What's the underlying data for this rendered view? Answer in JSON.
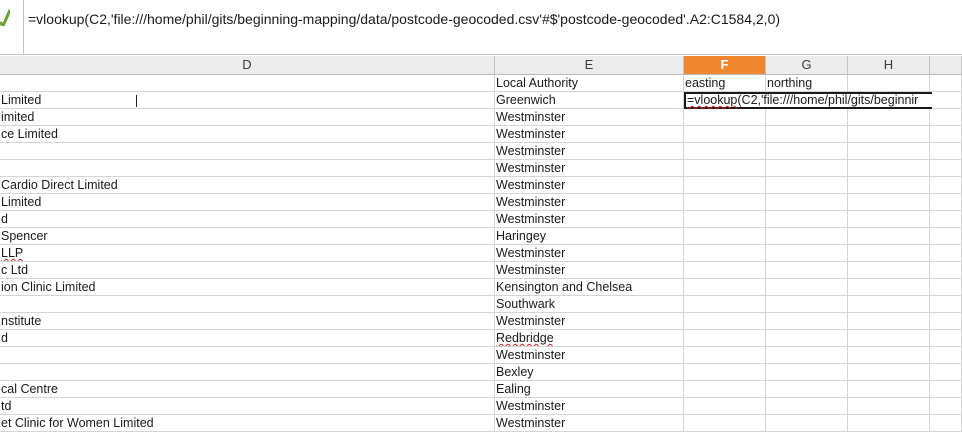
{
  "formula_bar": {
    "formula": "=vlookup(C2,'file:///home/phil/gits/beginning-mapping/data/postcode-geocoded.csv'#$'postcode-geocoded'.A2:C1584,2,0)"
  },
  "columns": {
    "d": "D",
    "e": "E",
    "f": "F",
    "g": "G",
    "h": "H"
  },
  "header_row": {
    "local_authority": "Local Authority",
    "easting": "easting",
    "northing": "northing"
  },
  "rows": [
    {
      "d": "Limited",
      "e": "Greenwich"
    },
    {
      "d": "imited",
      "e": "Westminster"
    },
    {
      "d": "ce Limited",
      "e": "Westminster"
    },
    {
      "d": "",
      "e": "Westminster"
    },
    {
      "d": "",
      "e": "Westminster"
    },
    {
      "d": "Cardio Direct Limited",
      "e": "Westminster"
    },
    {
      "d": "Limited",
      "e": "Westminster"
    },
    {
      "d": "d",
      "e": "Westminster"
    },
    {
      "d": "Spencer",
      "e": "Haringey"
    },
    {
      "d": "LLP",
      "e": "Westminster"
    },
    {
      "d": "c Ltd",
      "e": "Westminster"
    },
    {
      "d": "ion Clinic Limited",
      "e": "Kensington and Chelsea"
    },
    {
      "d": "",
      "e": "Southwark"
    },
    {
      "d": "nstitute",
      "e": "Westminster"
    },
    {
      "d": "d",
      "e": "Redbridge"
    },
    {
      "d": "",
      "e": "Westminster"
    },
    {
      "d": "",
      "e": "Bexley"
    },
    {
      "d": "cal Centre",
      "e": "Ealing"
    },
    {
      "d": "td",
      "e": "Westminster"
    },
    {
      "d": "et Clinic for Women Limited",
      "e": "Westminster"
    }
  ],
  "active_cell": {
    "fn": "=vlookup",
    "rest": "(C2,'file:///home/phil/gits/beginnir"
  },
  "colors": {
    "selected_column": "#f0862d",
    "accept_icon": "#6aa334",
    "spell_underline": "#d02020"
  },
  "icons": {
    "accept": "checkmark-icon"
  }
}
